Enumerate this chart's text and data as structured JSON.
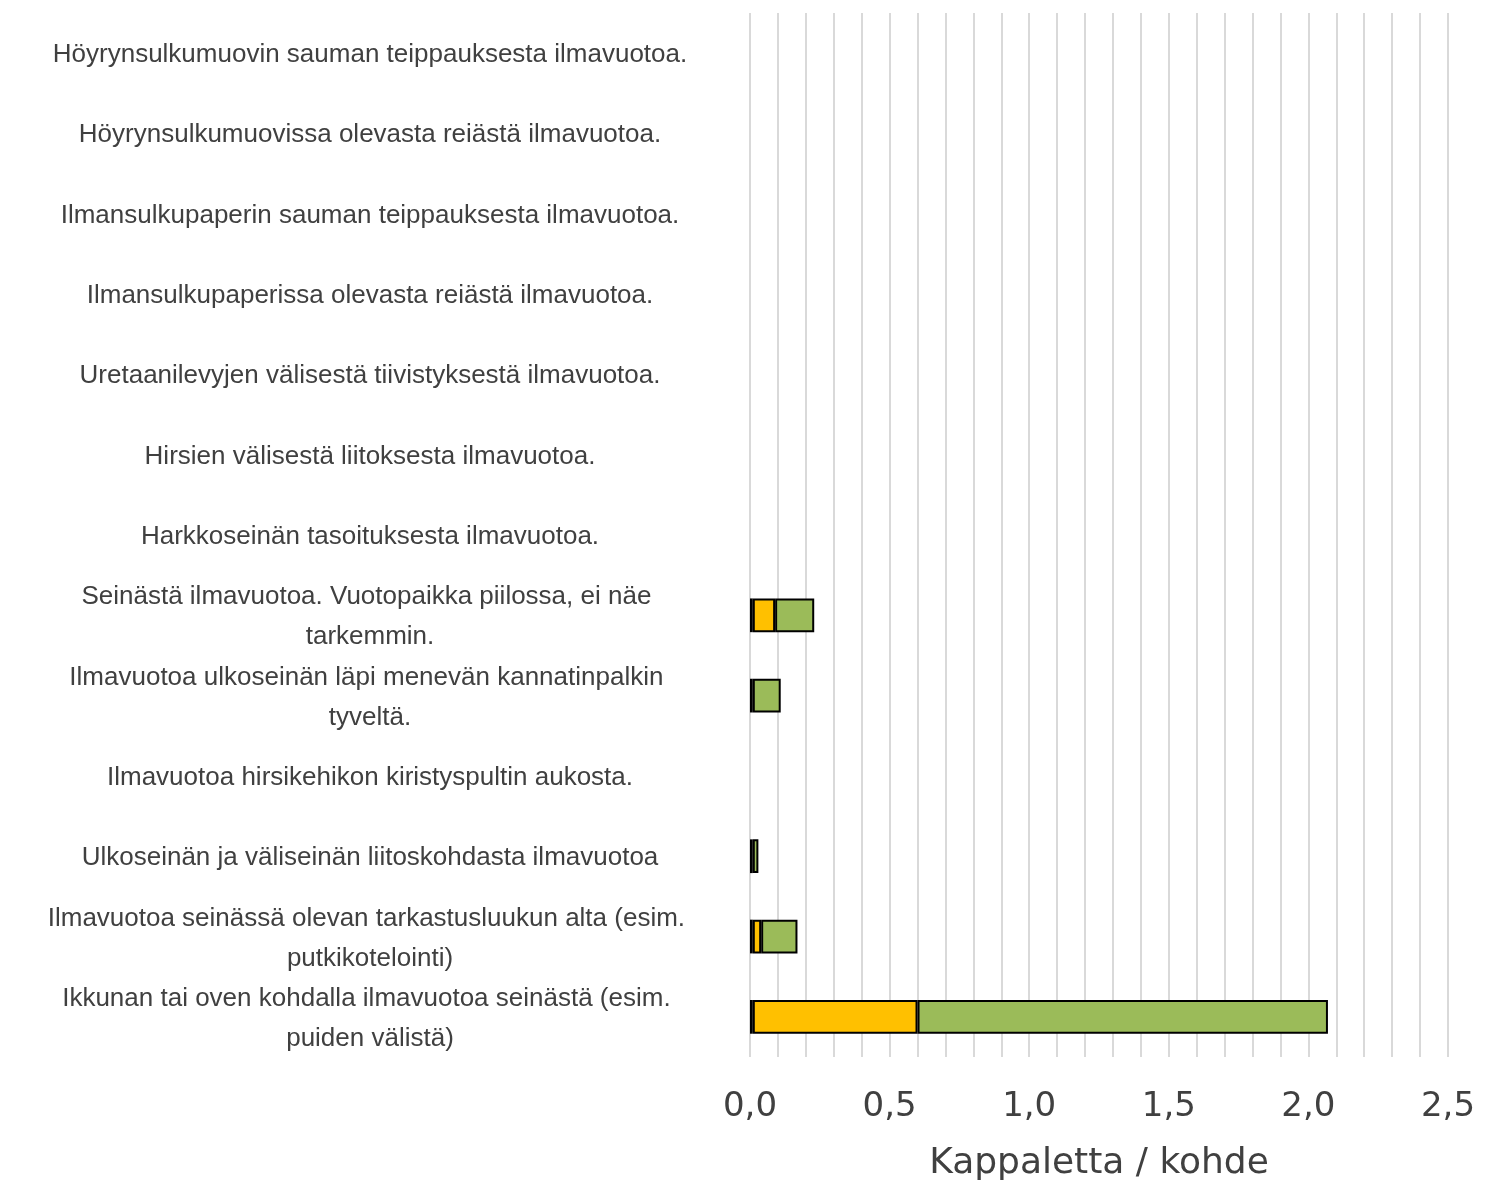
{
  "chart_data": {
    "type": "bar",
    "orientation": "horizontal",
    "stacked": true,
    "xlabel": "Kappaletta / kohde",
    "grid": "x",
    "categories": [
      "Höyrynsulkumuovin sauman teippauksesta ilmavuotoa.",
      "Höyrynsulkumuovissa olevasta reiästä ilmavuotoa.",
      "Ilmansulkupaperin sauman teippauksesta ilmavuotoa.",
      "Ilmansulkupaperissa olevasta reiästä ilmavuotoa.",
      "Uretaanilevyjen välisestä tiivistyksestä ilmavuotoa.",
      "Hirsien välisestä liitoksesta ilmavuotoa.",
      "Harkkoseinän tasoituksesta ilmavuotoa.",
      "Seinästä ilmavuotoa. Vuotopaikka piilossa, ei näe tarkemmin.",
      "Ilmavuotoa ulkoseinän läpi menevän kannatinpalkin tyveltä.",
      "Ilmavuotoa hirsikehikon kiristyspultin aukosta.",
      "Ulkoseinän ja väliseinän liitoskohdasta ilmavuotoa",
      "Ilmavuotoa seinässä olevan tarkastusluukun alta (esim. putkikotelointi)",
      "Ikkunan tai oven kohdalla ilmavuotoa seinästä (esim. puiden välistä)"
    ],
    "series": [
      {
        "color": "#c0504d",
        "values": [
          null,
          null,
          null,
          null,
          null,
          null,
          null,
          0.01,
          0.01,
          null,
          null,
          0.01,
          0.01
        ]
      },
      {
        "color": "#ffc000",
        "values": [
          null,
          null,
          null,
          null,
          null,
          null,
          null,
          0.08,
          null,
          null,
          0.01,
          0.03,
          0.59
        ]
      },
      {
        "color": "#9bbb59",
        "values": [
          null,
          null,
          null,
          null,
          null,
          null,
          null,
          0.14,
          0.1,
          null,
          0.02,
          0.13,
          1.47
        ]
      }
    ],
    "xlim": [
      0,
      2.5
    ],
    "xticks": [
      {
        "value": 0,
        "label": "0,0"
      },
      {
        "value": 0.1,
        "label": null
      },
      {
        "value": 0.2,
        "label": null
      },
      {
        "value": 0.3,
        "label": null
      },
      {
        "value": 0.4,
        "label": null
      },
      {
        "value": 0.5,
        "label": "0,5"
      },
      {
        "value": 0.6,
        "label": null
      },
      {
        "value": 0.7,
        "label": null
      },
      {
        "value": 0.8,
        "label": null
      },
      {
        "value": 0.9,
        "label": null
      },
      {
        "value": 1,
        "label": "1,0"
      },
      {
        "value": 1.1,
        "label": null
      },
      {
        "value": 1.2,
        "label": null
      },
      {
        "value": 1.3,
        "label": null
      },
      {
        "value": 1.4,
        "label": null
      },
      {
        "value": 1.5,
        "label": "1,5"
      },
      {
        "value": 1.6,
        "label": null
      },
      {
        "value": 1.7,
        "label": null
      },
      {
        "value": 1.8,
        "label": null
      },
      {
        "value": 1.9,
        "label": null
      },
      {
        "value": 2,
        "label": "2,0"
      },
      {
        "value": 2.1,
        "label": null
      },
      {
        "value": 2.2,
        "label": null
      },
      {
        "value": 2.3,
        "label": null
      },
      {
        "value": 2.4,
        "label": null
      },
      {
        "value": 2.5,
        "label": "2,5"
      }
    ]
  }
}
